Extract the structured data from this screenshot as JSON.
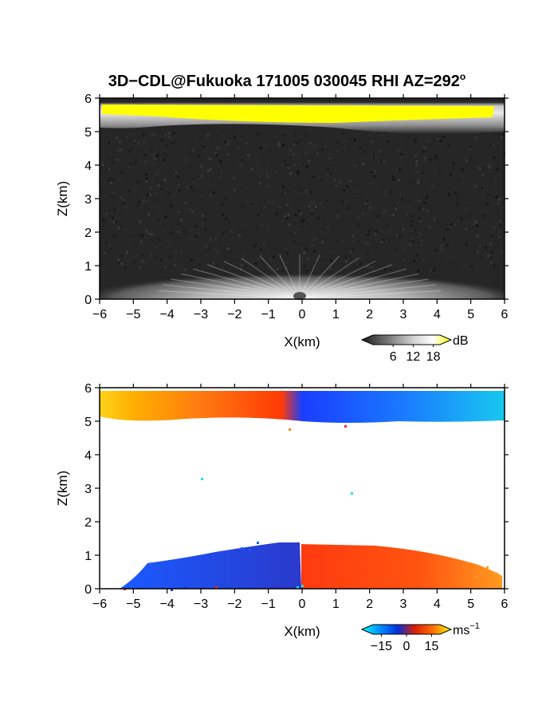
{
  "figure": {
    "title": "3D−CDL@Fukuoka 171005 030045 RHI AZ=292",
    "title_sup": "o"
  },
  "chart_data": [
    {
      "type": "heatmap",
      "name": "reflectivity-panel",
      "xlabel": "X(km)",
      "ylabel": "Z(km)",
      "xlim": [
        -6,
        6
      ],
      "ylim": [
        0,
        6
      ],
      "xticks": [
        -6,
        -5,
        -4,
        -3,
        -2,
        -1,
        0,
        1,
        2,
        3,
        4,
        5,
        6
      ],
      "yticks": [
        0,
        1,
        2,
        3,
        4,
        5,
        6
      ],
      "colorbar": {
        "unit": "dB",
        "unit_sup": "",
        "ticks": [
          6,
          12,
          18
        ],
        "range": [
          0,
          20
        ],
        "colors": [
          "#1a1a1a",
          "#5a5a5a",
          "#9a9a9a",
          "#d8d8d8",
          "#ffffff",
          "#ffff00"
        ]
      },
      "features": [
        {
          "label": "upper layer",
          "z_range": [
            5.0,
            5.9
          ],
          "max_value": "above 18"
        },
        {
          "label": "low-level clutter",
          "z_range": [
            0,
            1.2
          ]
        }
      ]
    },
    {
      "type": "heatmap",
      "name": "velocity-panel",
      "xlabel": "X(km)",
      "ylabel": "Z(km)",
      "xlim": [
        -6,
        6
      ],
      "ylim": [
        0,
        6
      ],
      "xticks": [
        -6,
        -5,
        -4,
        -3,
        -2,
        -1,
        0,
        1,
        2,
        3,
        4,
        5,
        6
      ],
      "yticks": [
        0,
        1,
        2,
        3,
        4,
        5,
        6
      ],
      "colorbar": {
        "unit": "ms",
        "unit_sup": "−1",
        "ticks": [
          -15,
          0,
          15
        ],
        "range": [
          -20,
          20
        ],
        "colors": [
          "#00ffff",
          "#0090ff",
          "#0030e0",
          "#e02000",
          "#ff7000",
          "#ffff00"
        ]
      },
      "features": [
        {
          "label": "upper layer",
          "z_range": [
            5.0,
            5.9
          ]
        },
        {
          "label": "lower layer",
          "z_range": [
            0,
            1.4
          ]
        }
      ]
    }
  ]
}
